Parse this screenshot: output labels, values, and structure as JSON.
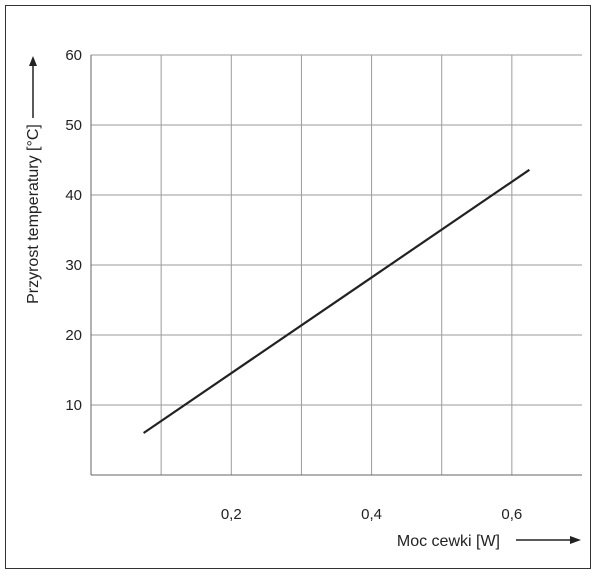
{
  "chart_data": {
    "type": "line",
    "title": "",
    "xlabel": "Moc cewki [W]",
    "ylabel": "Przyrost temperatury [°C]",
    "xlim": [
      0.0,
      0.7
    ],
    "ylim": [
      0,
      60
    ],
    "x_ticks": [
      0.2,
      0.4,
      0.6
    ],
    "x_tick_labels": [
      "0,2",
      "0,4",
      "0,6"
    ],
    "y_ticks": [
      10,
      20,
      30,
      40,
      50,
      60
    ],
    "y_tick_labels": [
      "10",
      "20",
      "30",
      "40",
      "50",
      "60"
    ],
    "grid": true,
    "x_grid_step": 0.1,
    "series": [
      {
        "x": [
          0.075,
          0.625
        ],
        "y": [
          6,
          43.6
        ]
      }
    ],
    "colors": {
      "line": "#222222",
      "grid": "#9a9a9a",
      "axis": "#666666"
    }
  }
}
